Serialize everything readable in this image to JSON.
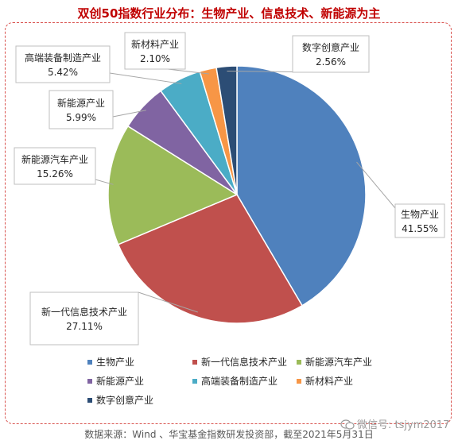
{
  "title": "双创50指数行业分布：生物产业、信息技术、新能源为主",
  "chart_data": {
    "type": "pie",
    "slices": [
      {
        "label": "生物产业",
        "value": 41.55,
        "value_text": "41.55%",
        "color": "#4f81bd"
      },
      {
        "label": "新一代信息技术产业",
        "value": 27.11,
        "value_text": "27.11%",
        "color": "#c0504d"
      },
      {
        "label": "新能源汽车产业",
        "value": 15.26,
        "value_text": "15.26%",
        "color": "#9bbb59"
      },
      {
        "label": "新能源产业",
        "value": 5.99,
        "value_text": "5.99%",
        "color": "#8064a2"
      },
      {
        "label": "高端装备制造产业",
        "value": 5.42,
        "value_text": "5.42%",
        "color": "#4bacc6"
      },
      {
        "label": "新材料产业",
        "value": 2.1,
        "value_text": "2.10%",
        "color": "#f79646"
      },
      {
        "label": "数字创意产业",
        "value": 2.56,
        "value_text": "2.56%",
        "color": "#2c4d75"
      }
    ],
    "start_angle_deg": 0,
    "direction": "clockwise",
    "legend_position": "bottom"
  },
  "watermark": "微信号: tsjym2017",
  "source": "数据来源：Wind 、华宝基金指数研发投资部，截至2021年5月31日"
}
